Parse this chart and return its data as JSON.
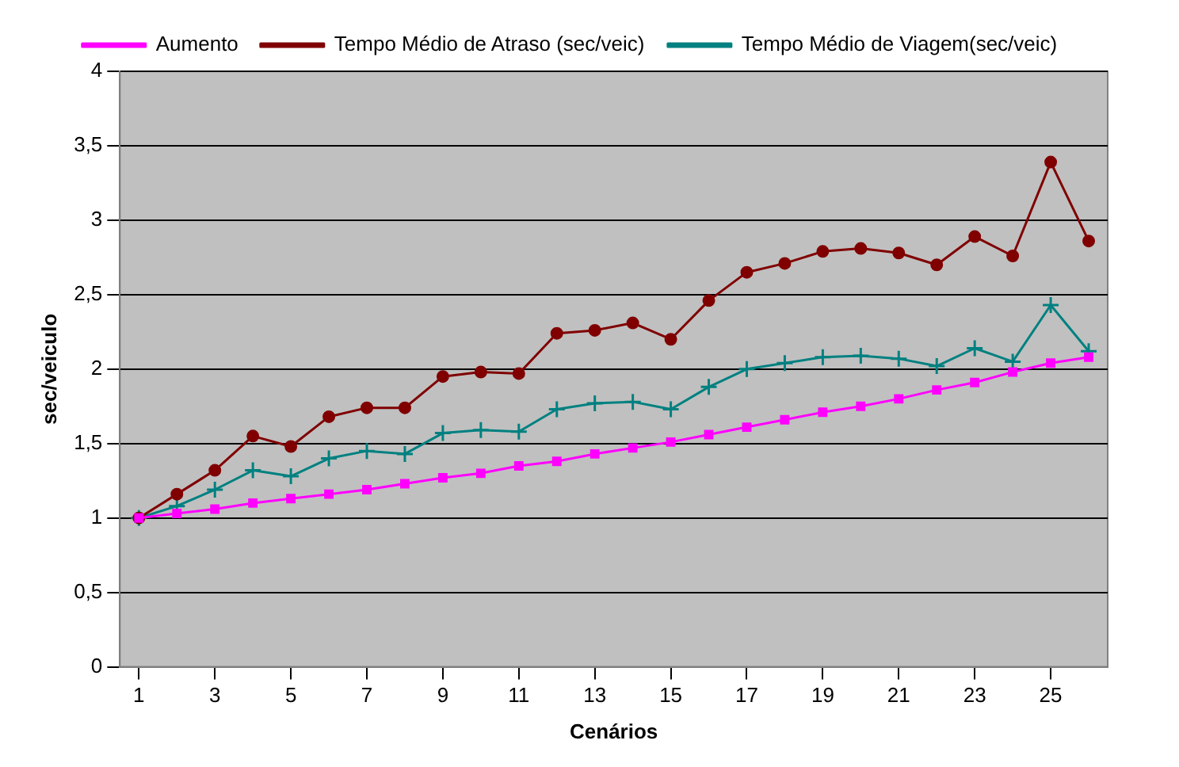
{
  "chart_data": {
    "type": "line",
    "xlabel": "Cenários",
    "ylabel": "sec/veiculo",
    "x": [
      1,
      2,
      3,
      4,
      5,
      6,
      7,
      8,
      9,
      10,
      11,
      12,
      13,
      14,
      15,
      16,
      17,
      18,
      19,
      20,
      21,
      22,
      23,
      24,
      25,
      26
    ],
    "xlim": [
      0.5,
      26.5
    ],
    "xticks": [
      1,
      3,
      5,
      7,
      9,
      11,
      13,
      15,
      17,
      19,
      21,
      23,
      25
    ],
    "series": [
      {
        "name": "Aumento",
        "color": "#ff00ff",
        "marker": "square",
        "values": [
          1,
          1.03,
          1.06,
          1.1,
          1.13,
          1.16,
          1.19,
          1.23,
          1.27,
          1.3,
          1.35,
          1.38,
          1.43,
          1.47,
          1.51,
          1.56,
          1.61,
          1.66,
          1.71,
          1.75,
          1.8,
          1.86,
          1.91,
          1.98,
          2.04,
          2.08
        ]
      },
      {
        "name": "Tempo Médio de Atraso (sec/veic)",
        "color": "#800000",
        "marker": "circle",
        "values": [
          1,
          1.16,
          1.32,
          1.55,
          1.48,
          1.68,
          1.74,
          1.74,
          1.95,
          1.98,
          1.97,
          2.24,
          2.26,
          2.31,
          2.2,
          2.46,
          2.65,
          2.71,
          2.79,
          2.81,
          2.78,
          2.7,
          2.89,
          2.76,
          3.39,
          2.86
        ]
      },
      {
        "name": "Tempo Médio de Viagem(sec/veic)",
        "color": "#008080",
        "marker": "cross",
        "values": [
          1,
          1.08,
          1.19,
          1.32,
          1.28,
          1.4,
          1.45,
          1.43,
          1.57,
          1.59,
          1.58,
          1.73,
          1.77,
          1.78,
          1.73,
          1.88,
          2,
          2.04,
          2.08,
          2.09,
          2.07,
          2.02,
          2.14,
          2.05,
          2.43,
          2.12
        ]
      }
    ],
    "ylim": [
      0,
      4
    ],
    "yticks": [
      0,
      {
        "value": 0.5,
        "label": "0,5"
      },
      1,
      {
        "value": 1.5,
        "label": "1,5"
      },
      2,
      {
        "value": 2.5,
        "label": "2,5"
      },
      3,
      {
        "value": 3.5,
        "label": "3,5"
      },
      4
    ],
    "grid": "y",
    "legend": "top"
  }
}
